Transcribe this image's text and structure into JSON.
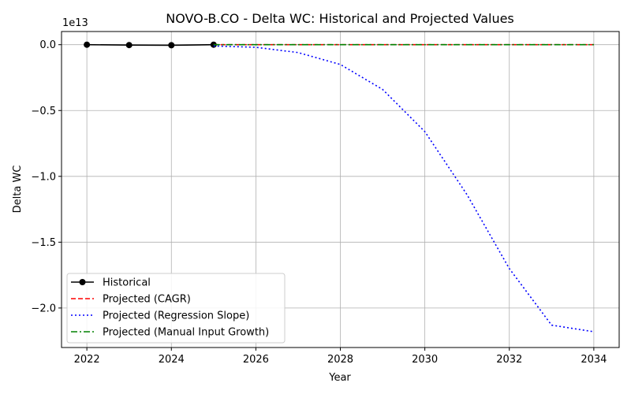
{
  "chart_data": {
    "type": "line",
    "title": "NOVO-B.CO - Delta WC: Historical and Projected Values",
    "xlabel": "Year",
    "ylabel": "Delta WC",
    "offset_label": "1e13",
    "xlim": [
      2021.4,
      2034.6
    ],
    "ylim": [
      -2.3,
      0.1
    ],
    "x_ticks": [
      2022,
      2024,
      2026,
      2028,
      2030,
      2032,
      2034
    ],
    "y_ticks": [
      0.0,
      -0.5,
      -1.0,
      -1.5,
      -2.0
    ],
    "y_tick_labels": [
      "0.0",
      "−0.5",
      "−1.0",
      "−1.5",
      "−2.0"
    ],
    "grid": true,
    "legend_position": "lower-left",
    "series": [
      {
        "name": "Historical",
        "color": "#000000",
        "style": "solid",
        "marker": "circle",
        "x": [
          2022,
          2023,
          2024,
          2025
        ],
        "y": [
          0.0,
          -0.003,
          -0.004,
          0.0
        ]
      },
      {
        "name": "Projected (CAGR)",
        "color": "#ff0000",
        "style": "dashed",
        "marker": "none",
        "x": [
          2025,
          2026,
          2027,
          2028,
          2029,
          2030,
          2031,
          2032,
          2033,
          2034
        ],
        "y": [
          0.0,
          0.0,
          0.0,
          0.0,
          0.0,
          0.0,
          0.0,
          0.0,
          0.0,
          0.0
        ]
      },
      {
        "name": "Projected (Regression Slope)",
        "color": "#0000ff",
        "style": "dotted",
        "marker": "none",
        "x": [
          2025,
          2026,
          2027,
          2028,
          2029,
          2030,
          2031,
          2032,
          2033,
          2034
        ],
        "y": [
          -0.01,
          -0.02,
          -0.06,
          -0.15,
          -0.34,
          -0.66,
          -1.14,
          -1.7,
          -2.13,
          -2.18
        ]
      },
      {
        "name": "Projected (Manual Input Growth)",
        "color": "#008000",
        "style": "dashdot",
        "marker": "none",
        "x": [
          2025,
          2026,
          2027,
          2028,
          2029,
          2030,
          2031,
          2032,
          2033,
          2034
        ],
        "y": [
          0.0,
          0.0,
          0.0,
          0.0,
          0.0,
          0.0,
          0.0,
          0.0,
          0.0,
          0.0
        ]
      }
    ]
  }
}
